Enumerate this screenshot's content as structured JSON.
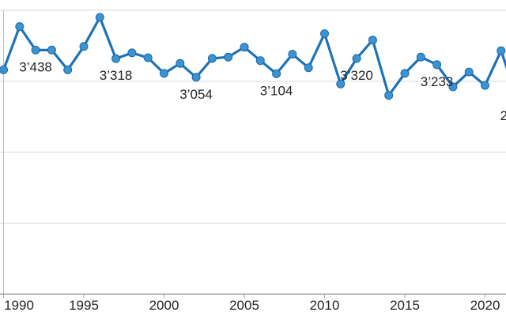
{
  "chart_data": {
    "type": "line",
    "title": "",
    "xlabel": "",
    "ylabel": "",
    "x_start_year": 1990,
    "x": [
      1990,
      1991,
      1992,
      1993,
      1994,
      1995,
      1996,
      1997,
      1998,
      1999,
      2000,
      2001,
      2002,
      2003,
      2004,
      2005,
      2006,
      2007,
      2008,
      2009,
      2010,
      2011,
      2012,
      2013,
      2014,
      2015,
      2016,
      2017,
      2018,
      2019,
      2020,
      2021,
      2022
    ],
    "values": [
      3160,
      3770,
      3438,
      3440,
      3160,
      3490,
      3900,
      3318,
      3400,
      3330,
      3110,
      3250,
      3054,
      3320,
      3340,
      3480,
      3290,
      3104,
      3380,
      3190,
      3670,
      2960,
      3320,
      3580,
      2800,
      3110,
      3340,
      3233,
      2920,
      3130,
      2940,
      3430,
      2750
    ],
    "point_labels": [
      {
        "year": 1992,
        "text": "3’438"
      },
      {
        "year": 1997,
        "text": "3’318"
      },
      {
        "year": 2002,
        "text": "3’054"
      },
      {
        "year": 2007,
        "text": "3’104"
      },
      {
        "year": 2012,
        "text": "3’320"
      },
      {
        "year": 2017,
        "text": "3’233"
      },
      {
        "year": 2022,
        "text": "2",
        "partial": true
      }
    ],
    "x_axis": {
      "tick_years": [
        1990,
        1995,
        2000,
        2005,
        2010,
        2015,
        2020
      ],
      "tick_labels": [
        "1990",
        "1995",
        "2000",
        "2005",
        "2010",
        "2015",
        "2020"
      ]
    },
    "y_axis": {
      "min": 0,
      "max": 4000,
      "gridline_step": 1000,
      "labels_visible": false
    },
    "grid": "horizontal",
    "legend": "none",
    "colors": {
      "line": "#1d72b8",
      "marker_fill": "#3e92cf",
      "marker_stroke": "#1a6aae",
      "gridline": "#d9d9d9",
      "axis_line": "#a6a6a6",
      "tick": "#a6a6a6",
      "left_border": "#bdbdbd",
      "label_text": "#262626",
      "background": "#ffffff"
    }
  }
}
